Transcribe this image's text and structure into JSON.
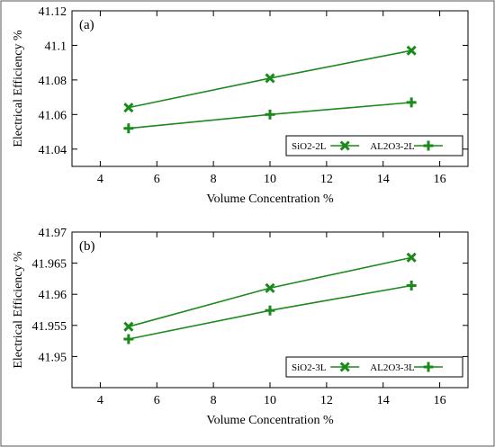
{
  "colors": {
    "series": "#1a8a1a",
    "axis": "#000000",
    "frame": "#555555"
  },
  "chart_data": [
    {
      "type": "line",
      "panel_label": "(a)",
      "xlabel": "Volume Concentration %",
      "ylabel": "Electrical Efficiency %",
      "xlim": [
        3,
        17
      ],
      "ylim": [
        41.03,
        41.12
      ],
      "xticks": [
        4,
        6,
        8,
        10,
        12,
        14,
        16
      ],
      "yticks": [
        41.04,
        41.06,
        41.08,
        41.1,
        41.12
      ],
      "ytick_labels": [
        "41.04",
        "41.06",
        "41.08",
        "41.1",
        "41.12"
      ],
      "legend_position": "bottom-right",
      "x": [
        5,
        10,
        15
      ],
      "series": [
        {
          "name": "SiO2-2L",
          "marker": "x",
          "values": [
            41.064,
            41.081,
            41.097
          ]
        },
        {
          "name": "AL2O3-2L",
          "marker": "+",
          "values": [
            41.052,
            41.06,
            41.067
          ]
        }
      ]
    },
    {
      "type": "line",
      "panel_label": "(b)",
      "xlabel": "Volume Concentration %",
      "ylabel": "Electrical Efficiency %",
      "xlim": [
        3,
        17
      ],
      "ylim": [
        41.945,
        41.97
      ],
      "xticks": [
        4,
        6,
        8,
        10,
        12,
        14,
        16
      ],
      "yticks": [
        41.95,
        41.955,
        41.96,
        41.965,
        41.97
      ],
      "ytick_labels": [
        "41.95",
        "41.955",
        "41.96",
        "41.965",
        "41.97"
      ],
      "legend_position": "bottom-right",
      "x": [
        5,
        10,
        15
      ],
      "series": [
        {
          "name": "SiO2-3L",
          "marker": "x",
          "values": [
            41.9548,
            41.961,
            41.9659
          ]
        },
        {
          "name": "AL2O3-3L",
          "marker": "+",
          "values": [
            41.9528,
            41.9574,
            41.9614
          ]
        }
      ]
    }
  ]
}
